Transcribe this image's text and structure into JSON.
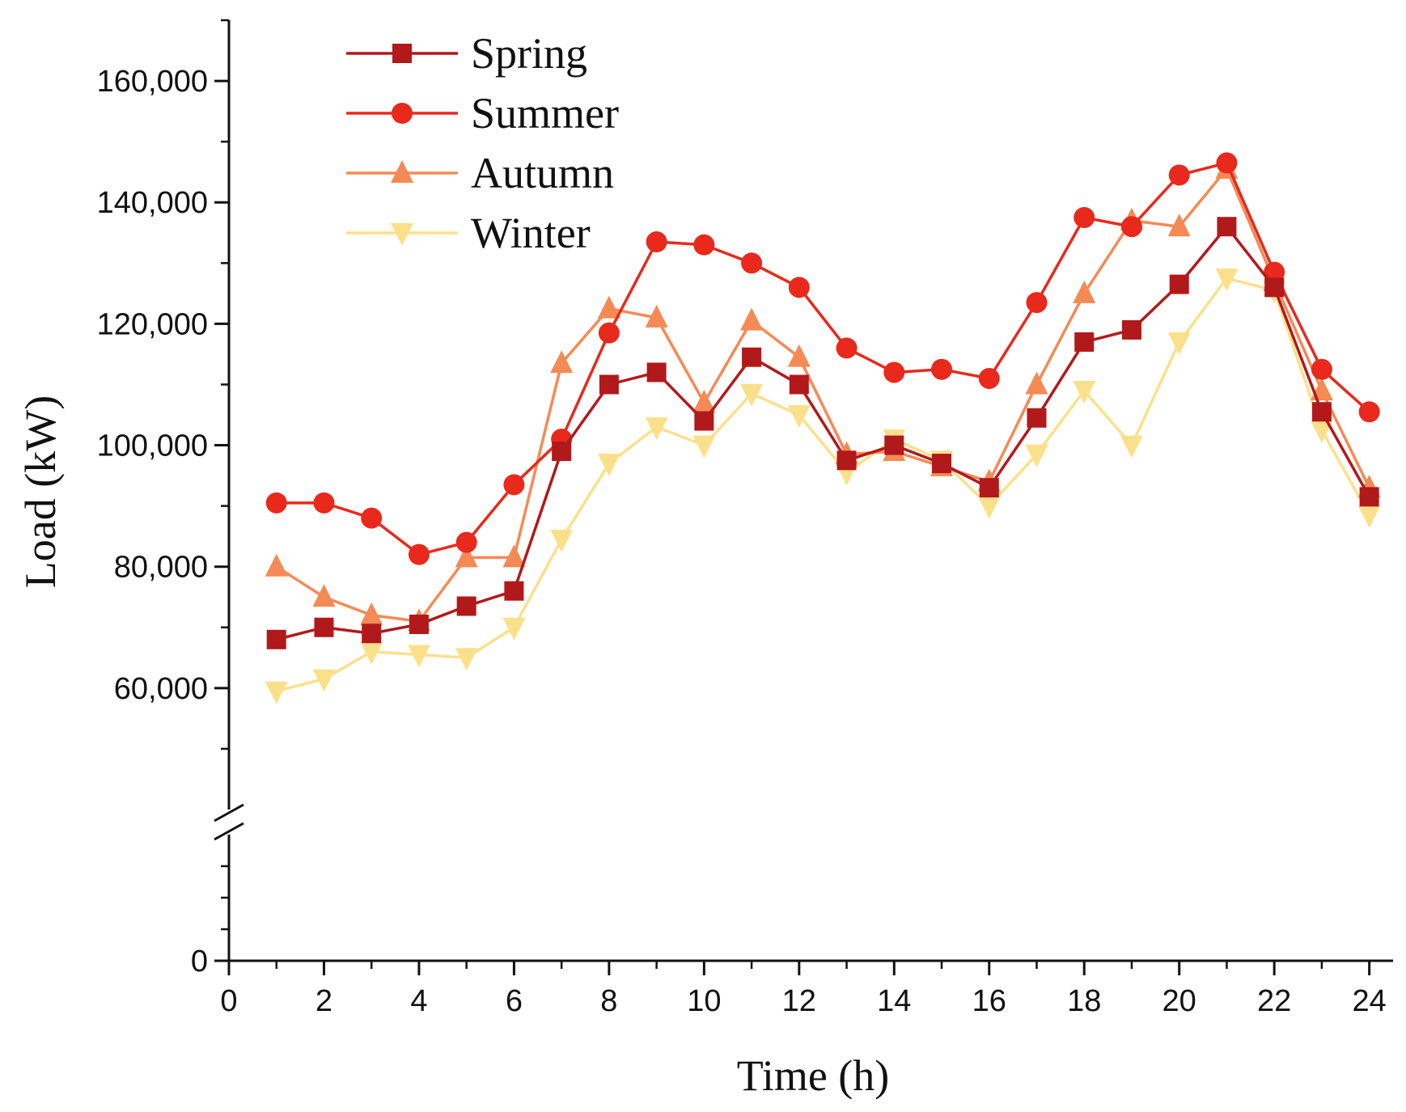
{
  "chart_data": {
    "type": "line",
    "title": "",
    "xlabel": "Time (h)",
    "ylabel": "Load (kW)",
    "xlim": [
      0,
      24.5
    ],
    "x_ticks": [
      0,
      2,
      4,
      6,
      8,
      10,
      12,
      14,
      16,
      18,
      20,
      22,
      24
    ],
    "y_break": true,
    "y_segments": [
      [
        0,
        40000
      ],
      [
        40000,
        170000
      ]
    ],
    "y_ticks": [
      0,
      60000,
      80000,
      100000,
      120000,
      140000,
      160000
    ],
    "y_tick_labels": [
      "0",
      "60,000",
      "80,000",
      "100,000",
      "120,000",
      "140,000",
      "160,000"
    ],
    "legend_position": "top-left",
    "x": [
      1,
      2,
      3,
      4,
      5,
      6,
      7,
      8,
      9,
      10,
      11,
      12,
      13,
      14,
      15,
      16,
      17,
      18,
      19,
      20,
      21,
      22,
      23,
      24
    ],
    "series": [
      {
        "name": "Spring",
        "color": "#B2191B",
        "marker": "square",
        "values": [
          68000,
          70000,
          69000,
          70500,
          73500,
          76000,
          99000,
          110000,
          112000,
          104000,
          114500,
          110000,
          97500,
          100000,
          97000,
          93000,
          104500,
          117000,
          119000,
          126500,
          136000,
          126000,
          105500,
          91500
        ]
      },
      {
        "name": "Summer",
        "color": "#E8291C",
        "marker": "circle",
        "values": [
          90500,
          90500,
          88000,
          82000,
          84000,
          93500,
          101000,
          118500,
          133500,
          133000,
          130000,
          126000,
          116000,
          112000,
          112500,
          111000,
          123500,
          137500,
          136000,
          144500,
          146500,
          128500,
          112500,
          105500
        ]
      },
      {
        "name": "Autumn",
        "color": "#F58A55",
        "marker": "triangle-up",
        "values": [
          80000,
          75000,
          72000,
          71000,
          81500,
          81500,
          113500,
          122500,
          121000,
          107000,
          120500,
          114500,
          98500,
          99000,
          96500,
          94000,
          110000,
          125000,
          137000,
          136000,
          145500,
          127000,
          109000,
          93000
        ]
      },
      {
        "name": "Winter",
        "color": "#FBE08C",
        "marker": "triangle-down",
        "values": [
          59500,
          61500,
          66000,
          65500,
          65000,
          70000,
          84500,
          97000,
          103000,
          100000,
          108500,
          105000,
          95500,
          101000,
          97500,
          90000,
          98500,
          109000,
          100000,
          117000,
          127500,
          125500,
          102500,
          88500
        ]
      }
    ]
  }
}
